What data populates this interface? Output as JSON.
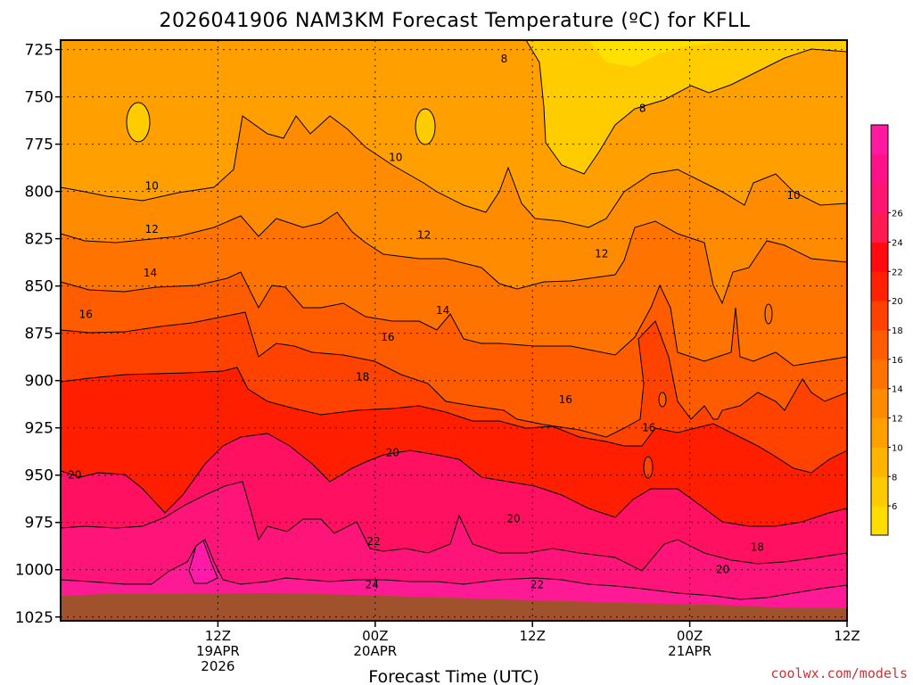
{
  "chart_data": {
    "type": "heatmap",
    "title": "2026041906 NAM3KM Forecast Temperature (ºC) for KFLL",
    "xlabel": "Forecast Time (UTC)",
    "ylabel": "",
    "credit": "coolwx.com/models",
    "y_ticks": [
      "725",
      "750",
      "775",
      "800",
      "825",
      "850",
      "875",
      "900",
      "925",
      "950",
      "975",
      "1000",
      "1025"
    ],
    "y_range_hpa": [
      720,
      1027
    ],
    "x_range_forecast_hours": [
      -5,
      45
    ],
    "x_ticks": [
      {
        "hour": 5,
        "line1": "12Z",
        "line2": "19APR",
        "line3": "2026"
      },
      {
        "hour": 15,
        "line1": "00Z",
        "line2": "20APR",
        "line3": ""
      },
      {
        "hour": 25,
        "line1": "12Z",
        "line2": "",
        "line3": ""
      },
      {
        "hour": 35,
        "line1": "00Z",
        "line2": "21APR",
        "line3": ""
      },
      {
        "hour": 45,
        "line1": "12Z",
        "line2": "",
        "line3": ""
      }
    ],
    "colorbar_ticks": [
      "6",
      "8",
      "10",
      "12",
      "14",
      "16",
      "18",
      "20",
      "22",
      "24",
      "26"
    ],
    "colorbar_colors": [
      "#ffdd00",
      "#ffca00",
      "#ffb400",
      "#ffa000",
      "#ff8c00",
      "#ff7400",
      "#ff5c00",
      "#ff4200",
      "#ff2200",
      "#ff0a10",
      "#ff1a50",
      "#ff1670",
      "#ff1288",
      "#ff1aa0"
    ],
    "contour_labels": [
      {
        "text": "8",
        "hour": 23.2,
        "p": 730
      },
      {
        "text": "8",
        "hour": 32,
        "p": 756
      },
      {
        "text": "10",
        "hour": 0.8,
        "p": 797
      },
      {
        "text": "10",
        "hour": 16.3,
        "p": 782
      },
      {
        "text": "10",
        "hour": 41.6,
        "p": 802
      },
      {
        "text": "12",
        "hour": 0.8,
        "p": 820
      },
      {
        "text": "12",
        "hour": 18.1,
        "p": 823
      },
      {
        "text": "12",
        "hour": 29.4,
        "p": 833
      },
      {
        "text": "14",
        "hour": 0.7,
        "p": 843
      },
      {
        "text": "14",
        "hour": 19.3,
        "p": 863
      },
      {
        "text": "16",
        "hour": -3.4,
        "p": 865
      },
      {
        "text": "16",
        "hour": 15.8,
        "p": 877
      },
      {
        "text": "16",
        "hour": 32.4,
        "p": 925
      },
      {
        "text": "16",
        "hour": 27.1,
        "p": 910
      },
      {
        "text": "18",
        "hour": 14.2,
        "p": 898
      },
      {
        "text": "18",
        "hour": 39.3,
        "p": 988
      },
      {
        "text": "20",
        "hour": -4.1,
        "p": 950
      },
      {
        "text": "20",
        "hour": 16.1,
        "p": 938
      },
      {
        "text": "20",
        "hour": 23.8,
        "p": 973
      },
      {
        "text": "20",
        "hour": 37.1,
        "p": 1000
      },
      {
        "text": "22",
        "hour": 14.9,
        "p": 985
      },
      {
        "text": "22",
        "hour": 25.3,
        "p": 1008
      },
      {
        "text": "24",
        "hour": 14.8,
        "p": 1008
      }
    ]
  }
}
